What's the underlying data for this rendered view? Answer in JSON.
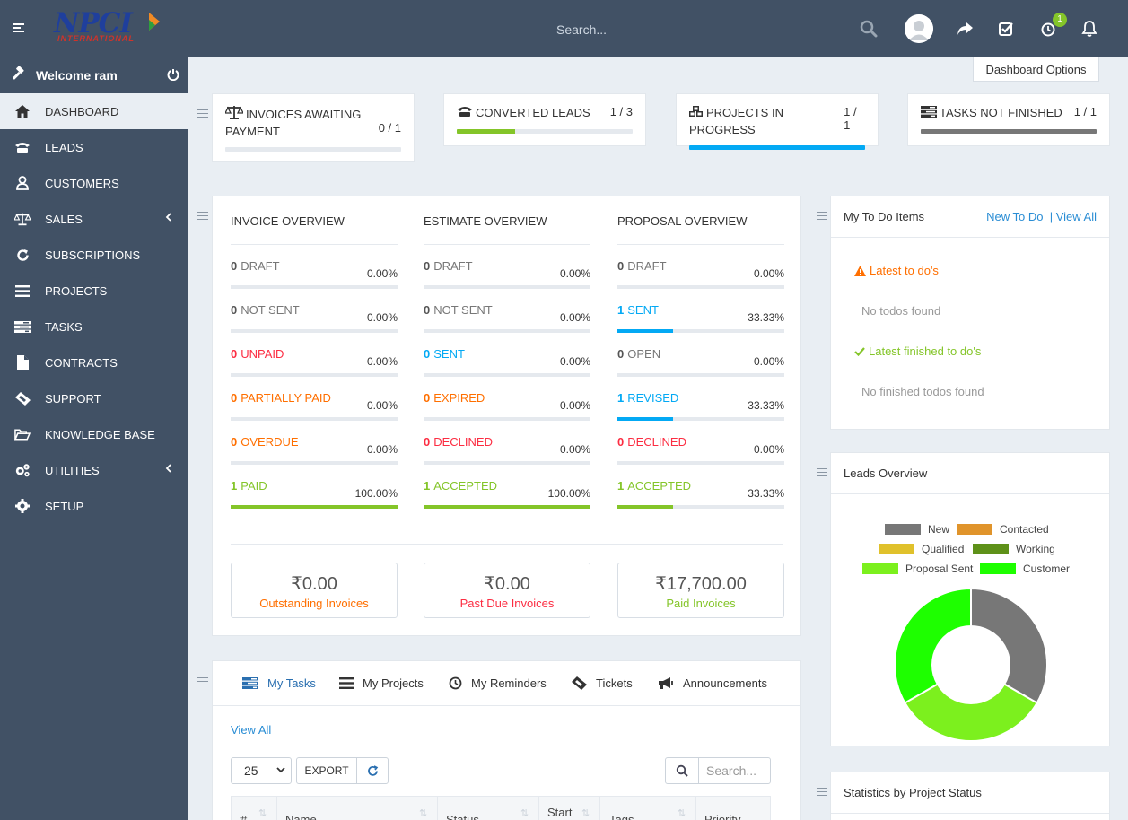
{
  "header": {
    "logo_text": "NPCI",
    "logo_sub": "INTERNATIONAL",
    "search_placeholder": "Search...",
    "notification_count": "1"
  },
  "sidebar": {
    "welcome": "Welcome ram",
    "items": [
      {
        "label": "DASHBOARD",
        "icon": "home-icon",
        "active": true
      },
      {
        "label": "LEADS",
        "icon": "tty-icon"
      },
      {
        "label": "CUSTOMERS",
        "icon": "user-icon"
      },
      {
        "label": "SALES",
        "icon": "balance-scale-icon",
        "arrow": true
      },
      {
        "label": "SUBSCRIPTIONS",
        "icon": "refresh-icon"
      },
      {
        "label": "PROJECTS",
        "icon": "bars-icon"
      },
      {
        "label": "TASKS",
        "icon": "tasks-icon"
      },
      {
        "label": "CONTRACTS",
        "icon": "file-icon"
      },
      {
        "label": "SUPPORT",
        "icon": "ticket-icon"
      },
      {
        "label": "KNOWLEDGE BASE",
        "icon": "folder-open-icon"
      },
      {
        "label": "UTILITIES",
        "icon": "cogs-icon",
        "arrow": true
      },
      {
        "label": "SETUP",
        "icon": "cog-icon"
      }
    ]
  },
  "dashboard_options": "Dashboard Options",
  "top_stats": [
    {
      "title": "INVOICES AWAITING PAYMENT",
      "value": "0 / 1",
      "progress": 0,
      "color": "#84c529"
    },
    {
      "title": "CONVERTED LEADS",
      "value": "1 / 3",
      "progress": 0.333,
      "color": "#84c529"
    },
    {
      "title": "PROJECTS IN PROGRESS",
      "value": "1 / 1",
      "progress": 1,
      "color": "#03a9f4"
    },
    {
      "title": "TASKS NOT FINISHED",
      "value": "1 / 1",
      "progress": 1,
      "color": "#777777"
    }
  ],
  "overview": {
    "columns": [
      {
        "title": "INVOICE OVERVIEW",
        "rows": [
          {
            "count": "0",
            "label": "DRAFT",
            "pct": "0.00%",
            "fill": 0,
            "color": "#777777"
          },
          {
            "count": "0",
            "label": "NOT SENT",
            "pct": "0.00%",
            "fill": 0,
            "color": "#777777"
          },
          {
            "count": "0",
            "label": "UNPAID",
            "pct": "0.00%",
            "fill": 0,
            "color": "#fc2d42"
          },
          {
            "count": "0",
            "label": "PARTIALLY PAID",
            "pct": "0.00%",
            "fill": 0,
            "color": "#ff6f00"
          },
          {
            "count": "0",
            "label": "OVERDUE",
            "pct": "0.00%",
            "fill": 0,
            "color": "#ff6f00"
          },
          {
            "count": "1",
            "label": "PAID",
            "pct": "100.00%",
            "fill": 1,
            "color": "#84c529"
          }
        ]
      },
      {
        "title": "ESTIMATE OVERVIEW",
        "rows": [
          {
            "count": "0",
            "label": "DRAFT",
            "pct": "0.00%",
            "fill": 0,
            "color": "#777777"
          },
          {
            "count": "0",
            "label": "NOT SENT",
            "pct": "0.00%",
            "fill": 0,
            "color": "#777777"
          },
          {
            "count": "0",
            "label": "SENT",
            "pct": "0.00%",
            "fill": 0,
            "color": "#03a9f4"
          },
          {
            "count": "0",
            "label": "EXPIRED",
            "pct": "0.00%",
            "fill": 0,
            "color": "#ff6f00"
          },
          {
            "count": "0",
            "label": "DECLINED",
            "pct": "0.00%",
            "fill": 0,
            "color": "#fc2d42"
          },
          {
            "count": "1",
            "label": "ACCEPTED",
            "pct": "100.00%",
            "fill": 1,
            "color": "#84c529"
          }
        ]
      },
      {
        "title": "PROPOSAL OVERVIEW",
        "rows": [
          {
            "count": "0",
            "label": "DRAFT",
            "pct": "0.00%",
            "fill": 0,
            "color": "#777777"
          },
          {
            "count": "1",
            "label": "SENT",
            "pct": "33.33%",
            "fill": 0.3333,
            "color": "#03a9f4"
          },
          {
            "count": "0",
            "label": "OPEN",
            "pct": "0.00%",
            "fill": 0,
            "color": "#777777"
          },
          {
            "count": "1",
            "label": "REVISED",
            "pct": "33.33%",
            "fill": 0.3333,
            "color": "#03a9f4"
          },
          {
            "count": "0",
            "label": "DECLINED",
            "pct": "0.00%",
            "fill": 0,
            "color": "#fc2d42"
          },
          {
            "count": "1",
            "label": "ACCEPTED",
            "pct": "33.33%",
            "fill": 0.3333,
            "color": "#84c529"
          }
        ]
      }
    ],
    "summaries": [
      {
        "amount": "₹0.00",
        "label": "Outstanding Invoices",
        "color": "#ff6f00"
      },
      {
        "amount": "₹0.00",
        "label": "Past Due Invoices",
        "color": "#fc2d42"
      },
      {
        "amount": "₹17,700.00",
        "label": "Paid Invoices",
        "color": "#84c529"
      }
    ]
  },
  "todo": {
    "title": "My To Do Items",
    "new_link": "New To Do",
    "view_all_link": "| View All",
    "latest_title": "Latest to do's",
    "latest_empty": "No todos found",
    "finished_title": "Latest finished to do's",
    "finished_empty": "No finished todos found"
  },
  "leads_overview": {
    "title": "Leads Overview"
  },
  "chart_data": {
    "type": "pie",
    "categories": [
      "New",
      "Contacted",
      "Qualified",
      "Working",
      "Proposal Sent",
      "Customer"
    ],
    "values": [
      1,
      0,
      0,
      0,
      1,
      1
    ],
    "colors": [
      "#777777",
      "#e0942b",
      "#e0c12b",
      "#5e9119",
      "#7cf01e",
      "#1eff00"
    ],
    "legend_position": "top"
  },
  "stats_by_project": {
    "title": "Statistics by Project Status"
  },
  "tasks_panel": {
    "tabs": [
      {
        "label": "My Tasks",
        "icon": "tasks-icon",
        "active": true
      },
      {
        "label": "My Projects",
        "icon": "bars-icon"
      },
      {
        "label": "My Reminders",
        "icon": "clock-icon"
      },
      {
        "label": "Tickets",
        "icon": "ticket-icon"
      },
      {
        "label": "Announcements",
        "icon": "bullhorn-icon"
      }
    ],
    "view_all": "View All",
    "page_size": "25",
    "export_label": "EXPORT",
    "search_placeholder": "Search...",
    "columns": [
      "#",
      "Name",
      "Status",
      "Start",
      "Tags",
      "Priority"
    ]
  }
}
